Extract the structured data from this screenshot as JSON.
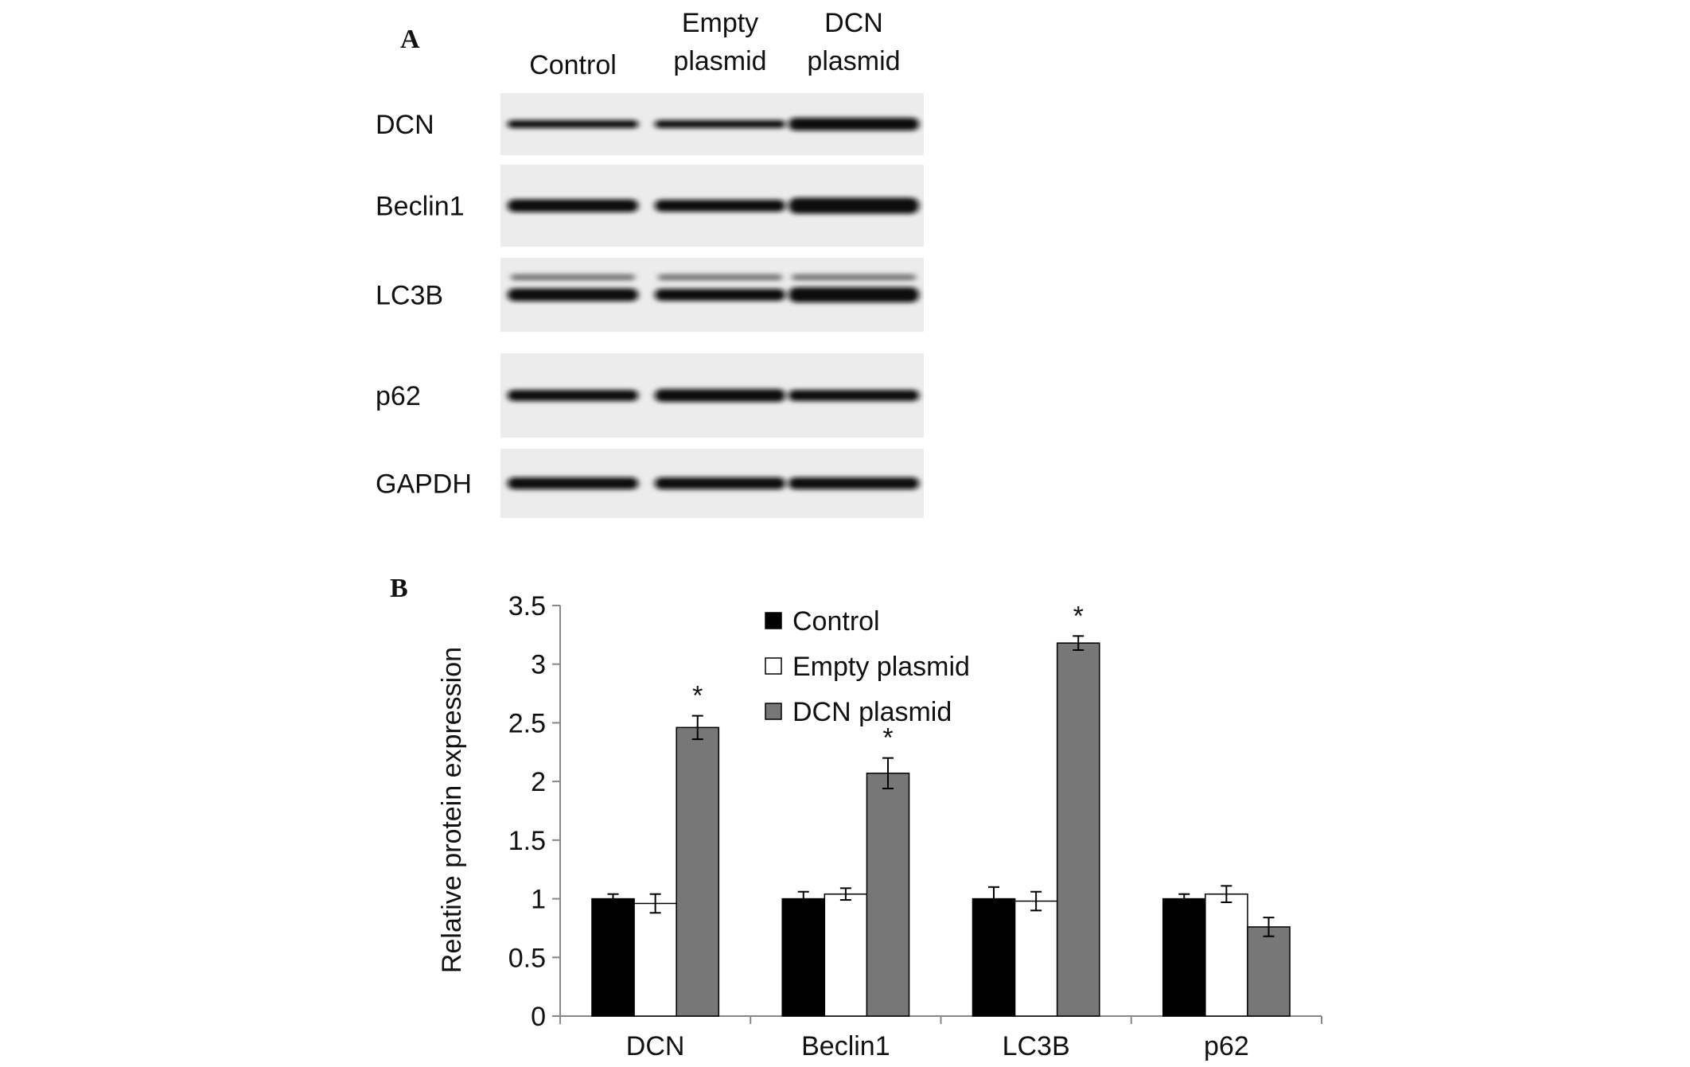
{
  "panel_a": {
    "label": "A",
    "lanes": [
      [
        "Control"
      ],
      [
        "Empty",
        "plasmid"
      ],
      [
        "DCN",
        "plasmid"
      ]
    ],
    "rows": [
      "DCN",
      "Beclin1",
      "LC3B",
      "p62",
      "GAPDH"
    ]
  },
  "chart_data": {
    "type": "bar",
    "panel_label": "B",
    "y_label": "Relative protein expression",
    "categories": [
      "DCN",
      "Beclin1",
      "LC3B",
      "p62"
    ],
    "series": [
      {
        "name": "Control",
        "color": "#000000",
        "values": [
          1,
          1,
          1,
          1
        ],
        "errors": [
          0.04,
          0.06,
          0.1,
          0.04
        ]
      },
      {
        "name": "Empty plasmid",
        "color": "#ffffff",
        "values": [
          0.96,
          1.04,
          0.98,
          1.04
        ],
        "errors": [
          0.08,
          0.05,
          0.08,
          0.07
        ]
      },
      {
        "name": "DCN plasmid",
        "color": "#777777",
        "values": [
          2.46,
          2.07,
          3.18,
          0.76
        ],
        "errors": [
          0.1,
          0.13,
          0.06,
          0.08
        ],
        "significance": [
          "*",
          "*",
          "*",
          null
        ]
      }
    ],
    "ylim": [
      0,
      3.5
    ],
    "yticks": [
      0,
      0.5,
      1,
      1.5,
      2,
      2.5,
      3,
      3.5
    ],
    "grid": false,
    "legend": "upper center"
  }
}
